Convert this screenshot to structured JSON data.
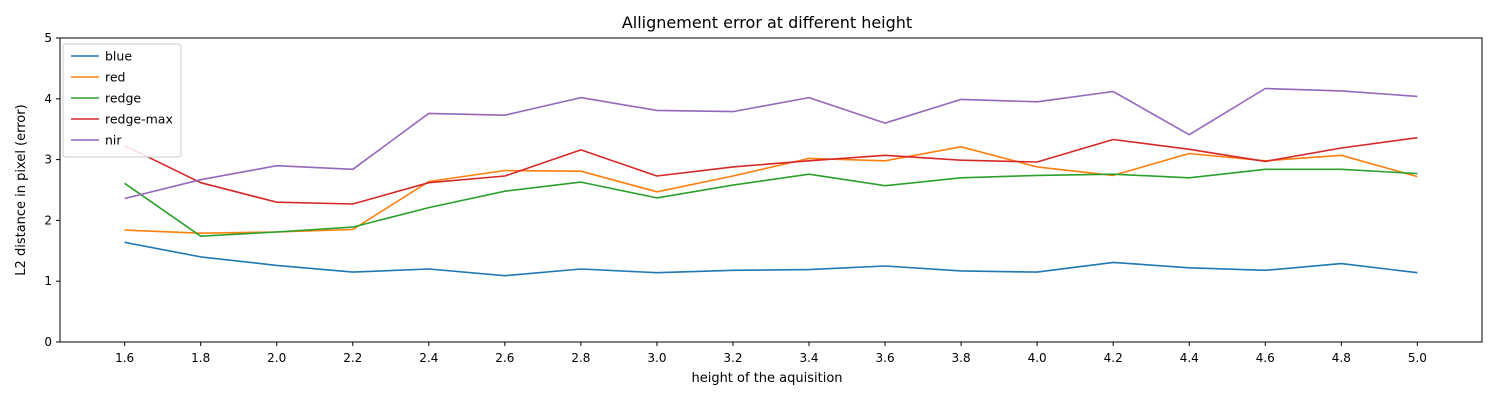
{
  "chart_data": {
    "type": "line",
    "title": "Allignement error at different height",
    "xlabel": "height of the aquisition",
    "ylabel": "L2 distance in pixel (error)",
    "x": [
      1.6,
      1.8,
      2.0,
      2.2,
      2.4,
      2.6,
      2.8,
      3.0,
      3.2,
      3.4,
      3.6,
      3.8,
      4.0,
      4.2,
      4.4,
      4.6,
      4.8,
      5.0
    ],
    "x_tick_labels": [
      "1.6",
      "1.8",
      "2.0",
      "2.2",
      "2.4",
      "2.6",
      "2.8",
      "3.0",
      "3.2",
      "3.4",
      "3.6",
      "3.8",
      "4.0",
      "4.2",
      "4.4",
      "4.6",
      "4.8",
      "5.0"
    ],
    "xlim": [
      1.43,
      5.17
    ],
    "ylim": [
      0,
      5
    ],
    "y_ticks": [
      0,
      1,
      2,
      3,
      4,
      5
    ],
    "y_tick_labels": [
      "0",
      "1",
      "2",
      "3",
      "4",
      "5"
    ],
    "grid": false,
    "legend_position": "top-left",
    "series": [
      {
        "name": "blue",
        "color": "#1f77b4",
        "values": [
          1.64,
          1.4,
          1.26,
          1.15,
          1.2,
          1.09,
          1.2,
          1.14,
          1.18,
          1.19,
          1.25,
          1.17,
          1.15,
          1.31,
          1.22,
          1.18,
          1.29,
          1.14
        ]
      },
      {
        "name": "red",
        "color": "#ff7f0e",
        "values": [
          1.84,
          1.79,
          1.81,
          1.85,
          2.64,
          2.82,
          2.81,
          2.47,
          2.73,
          3.02,
          2.98,
          3.21,
          2.88,
          2.74,
          3.1,
          2.98,
          3.07,
          2.72
        ]
      },
      {
        "name": "redge",
        "color": "#2ca02c",
        "values": [
          2.61,
          1.74,
          1.81,
          1.89,
          2.21,
          2.48,
          2.63,
          2.37,
          2.58,
          2.76,
          2.57,
          2.7,
          2.74,
          2.76,
          2.7,
          2.84,
          2.84,
          2.77
        ]
      },
      {
        "name": "redge-max",
        "color": "#d62728",
        "values": [
          3.23,
          2.62,
          2.3,
          2.27,
          2.62,
          2.73,
          3.16,
          2.73,
          2.88,
          2.98,
          3.07,
          2.99,
          2.96,
          3.33,
          3.17,
          2.97,
          3.19,
          3.36
        ]
      },
      {
        "name": "nir",
        "color": "#9467bd",
        "values": [
          2.36,
          2.67,
          2.9,
          2.84,
          3.76,
          3.73,
          4.02,
          3.81,
          3.79,
          4.02,
          3.6,
          3.99,
          3.95,
          4.12,
          3.41,
          4.17,
          4.13,
          4.04
        ]
      }
    ]
  }
}
